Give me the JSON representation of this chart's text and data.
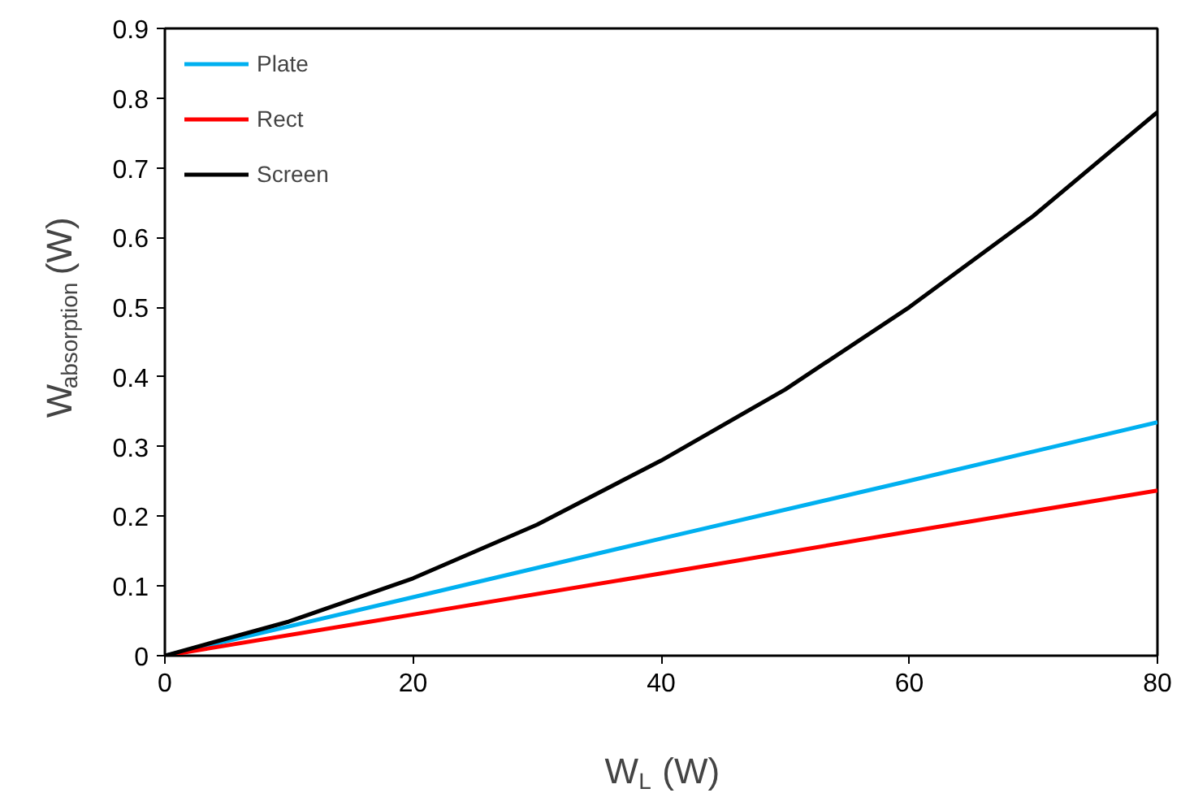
{
  "chart_data": {
    "type": "line",
    "xlabel": "W$_{L}$ (W)",
    "ylabel": "W$_{absorption}$ (W)",
    "xlim": [
      0,
      80
    ],
    "xticks": [
      0,
      20,
      40,
      60,
      80
    ],
    "ylim": [
      0,
      0.9
    ],
    "yticks": [
      0,
      0.1,
      0.2,
      0.3,
      0.4,
      0.5,
      0.6,
      0.7,
      0.8,
      0.9
    ],
    "grid": false,
    "legend": "top left",
    "series": [
      {
        "name": "Plate",
        "color": "#00b0f0",
        "x": [
          0,
          20,
          40,
          60,
          80
        ],
        "values": [
          0,
          0.084,
          0.168,
          0.251,
          0.335
        ]
      },
      {
        "name": "Rect",
        "color": "#ff0000",
        "x": [
          0,
          20,
          40,
          60,
          80
        ],
        "values": [
          0,
          0.059,
          0.118,
          0.178,
          0.237
        ]
      },
      {
        "name": "Screen",
        "color": "#000000",
        "x": [
          0,
          10,
          20,
          30,
          40,
          50,
          60,
          70,
          80
        ],
        "values": [
          0,
          0.049,
          0.111,
          0.188,
          0.28,
          0.382,
          0.5,
          0.631,
          0.78
        ]
      }
    ]
  }
}
